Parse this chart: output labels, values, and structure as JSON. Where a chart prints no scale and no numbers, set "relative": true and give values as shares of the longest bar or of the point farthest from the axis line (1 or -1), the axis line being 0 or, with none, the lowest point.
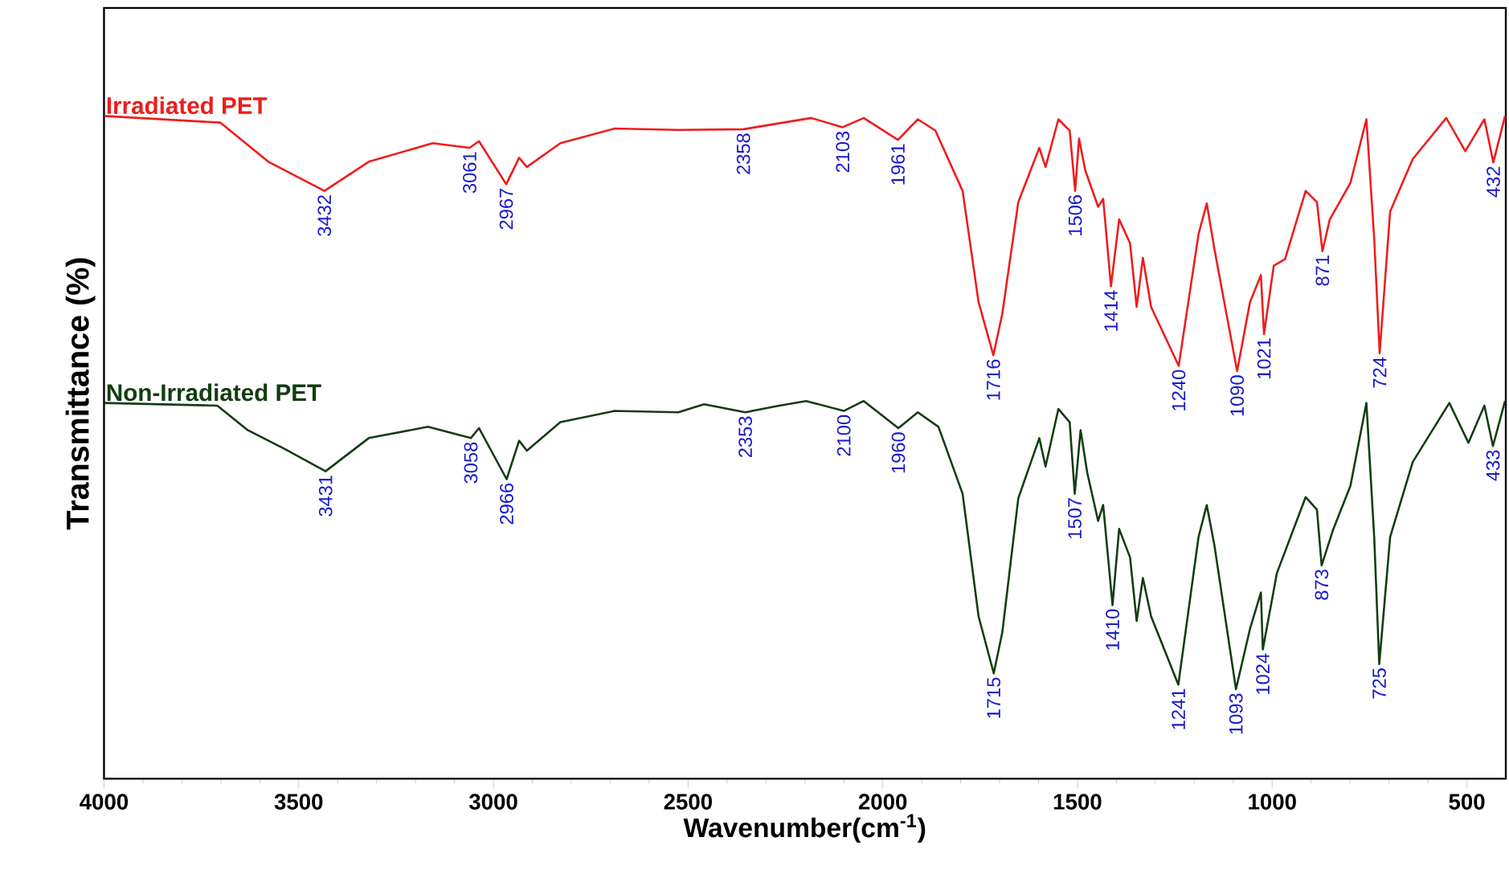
{
  "chart_data": {
    "type": "line",
    "relative": true,
    "xlabel": "Wavenumber(cm$^{-1}$)",
    "ylabel": "Transmittance (%)",
    "xlim": [
      4000,
      400
    ],
    "xticks": [
      4000,
      3500,
      3000,
      2500,
      2000,
      1500,
      1000,
      500
    ],
    "grid": false,
    "legend": false,
    "marker": "none",
    "line_style": "solid",
    "series": [
      {
        "name": "Irradiated PET",
        "color": "#ee1c1c",
        "x": [
          4000,
          3701,
          3578,
          3434,
          3320,
          3156,
          3061,
          3037,
          2967,
          2934,
          2914,
          2828,
          2689,
          2525,
          2358,
          2184,
          2103,
          2049,
          1961,
          1910,
          1865,
          1795,
          1754,
          1716,
          1693,
          1652,
          1598,
          1582,
          1549,
          1520,
          1506,
          1496,
          1480,
          1447,
          1434,
          1414,
          1393,
          1365,
          1348,
          1332,
          1311,
          1240,
          1189,
          1168,
          1148,
          1090,
          1057,
          1029,
          1021,
          996,
          967,
          914,
          885,
          871,
          852,
          799,
          758,
          738,
          724,
          697,
          639,
          553,
          504,
          455,
          432,
          402
        ],
        "values": [
          1.0,
          0.99,
          0.931,
          0.887,
          0.931,
          0.959,
          0.952,
          0.962,
          0.897,
          0.937,
          0.923,
          0.959,
          0.981,
          0.979,
          0.98,
          0.997,
          0.983,
          0.997,
          0.964,
          0.995,
          0.978,
          0.887,
          0.719,
          0.639,
          0.702,
          0.87,
          0.952,
          0.923,
          0.995,
          0.978,
          0.887,
          0.966,
          0.918,
          0.863,
          0.875,
          0.743,
          0.844,
          0.808,
          0.712,
          0.786,
          0.712,
          0.623,
          0.822,
          0.868,
          0.798,
          0.615,
          0.719,
          0.76,
          0.671,
          0.774,
          0.784,
          0.887,
          0.87,
          0.796,
          0.844,
          0.899,
          0.995,
          0.815,
          0.642,
          0.856,
          0.935,
          0.997,
          0.947,
          0.995,
          0.93,
          1.0
        ]
      },
      {
        "name": "Non-Irradiated PET",
        "color": "#123d12",
        "x": [
          4000,
          3709,
          3631,
          3537,
          3431,
          3320,
          3168,
          3058,
          3037,
          2966,
          2934,
          2914,
          2828,
          2689,
          2525,
          2459,
          2353,
          2266,
          2197,
          2100,
          2049,
          1960,
          1910,
          1857,
          1795,
          1754,
          1715,
          1693,
          1652,
          1598,
          1582,
          1549,
          1520,
          1507,
          1492,
          1475,
          1447,
          1434,
          1410,
          1393,
          1365,
          1348,
          1332,
          1311,
          1241,
          1189,
          1168,
          1148,
          1093,
          1057,
          1029,
          1024,
          988,
          914,
          885,
          873,
          844,
          799,
          758,
          738,
          725,
          697,
          639,
          545,
          496,
          455,
          433,
          402
        ],
        "values": [
          0.567,
          0.563,
          0.526,
          0.498,
          0.464,
          0.514,
          0.531,
          0.514,
          0.529,
          0.452,
          0.51,
          0.495,
          0.538,
          0.555,
          0.553,
          0.565,
          0.553,
          0.563,
          0.57,
          0.555,
          0.57,
          0.529,
          0.553,
          0.531,
          0.43,
          0.245,
          0.159,
          0.221,
          0.423,
          0.514,
          0.471,
          0.558,
          0.538,
          0.43,
          0.526,
          0.462,
          0.389,
          0.413,
          0.262,
          0.377,
          0.334,
          0.238,
          0.303,
          0.245,
          0.142,
          0.365,
          0.413,
          0.351,
          0.135,
          0.226,
          0.281,
          0.195,
          0.31,
          0.425,
          0.406,
          0.322,
          0.375,
          0.442,
          0.567,
          0.365,
          0.173,
          0.365,
          0.478,
          0.567,
          0.507,
          0.563,
          0.502,
          0.57
        ]
      }
    ],
    "annotations": [
      {
        "text": "3432",
        "x": 3434,
        "y": 0.887
      },
      {
        "text": "3061",
        "x": 3061,
        "y": 0.952
      },
      {
        "text": "2967",
        "x": 2967,
        "y": 0.897
      },
      {
        "text": "2358",
        "x": 2358,
        "y": 0.98
      },
      {
        "text": "2103",
        "x": 2103,
        "y": 0.983
      },
      {
        "text": "1961",
        "x": 1961,
        "y": 0.964
      },
      {
        "text": "1716",
        "x": 1716,
        "y": 0.639
      },
      {
        "text": "1506",
        "x": 1506,
        "y": 0.887
      },
      {
        "text": "1414",
        "x": 1414,
        "y": 0.743
      },
      {
        "text": "1240",
        "x": 1240,
        "y": 0.623
      },
      {
        "text": "1090",
        "x": 1090,
        "y": 0.615
      },
      {
        "text": "1021",
        "x": 1021,
        "y": 0.671
      },
      {
        "text": "871",
        "x": 871,
        "y": 0.796
      },
      {
        "text": "724",
        "x": 724,
        "y": 0.642
      },
      {
        "text": "432",
        "x": 432,
        "y": 0.93
      },
      {
        "text": "3431",
        "x": 3431,
        "y": 0.464
      },
      {
        "text": "3058",
        "x": 3058,
        "y": 0.514
      },
      {
        "text": "2966",
        "x": 2966,
        "y": 0.452
      },
      {
        "text": "2353",
        "x": 2353,
        "y": 0.553
      },
      {
        "text": "2100",
        "x": 2100,
        "y": 0.555
      },
      {
        "text": "1960",
        "x": 1960,
        "y": 0.529
      },
      {
        "text": "1715",
        "x": 1715,
        "y": 0.159
      },
      {
        "text": "1507",
        "x": 1507,
        "y": 0.43
      },
      {
        "text": "1410",
        "x": 1410,
        "y": 0.262
      },
      {
        "text": "1241",
        "x": 1241,
        "y": 0.142
      },
      {
        "text": "1093",
        "x": 1093,
        "y": 0.135
      },
      {
        "text": "1024",
        "x": 1024,
        "y": 0.195
      },
      {
        "text": "873",
        "x": 873,
        "y": 0.322
      },
      {
        "text": "725",
        "x": 725,
        "y": 0.173
      },
      {
        "text": "433",
        "x": 433,
        "y": 0.502
      }
    ]
  }
}
